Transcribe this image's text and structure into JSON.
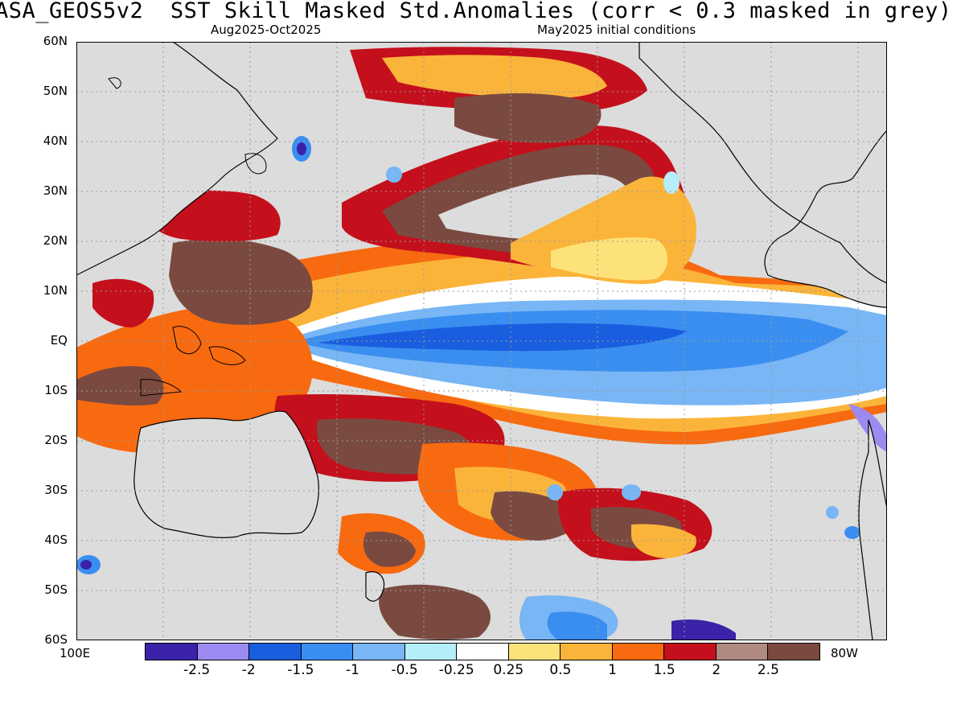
{
  "title": "ASA_GEOS5v2  SST Skill Masked Std.Anomalies (corr < 0.3 masked in grey)",
  "subtitle_left": "Aug2025-Oct2025",
  "subtitle_right": "May2025 initial conditions",
  "lat_labels": [
    "60N",
    "50N",
    "40N",
    "30N",
    "20N",
    "10N",
    "EQ",
    "10S",
    "20S",
    "30S",
    "40S",
    "50S",
    "60S"
  ],
  "lon_labels": {
    "left": "100E",
    "right": "80W"
  },
  "colorbar": {
    "colors": [
      "#3b22a8",
      "#9d8af0",
      "#1a5ee0",
      "#3a8ef0",
      "#78b6f5",
      "#b4eef8",
      "#ffffff",
      "#fde27a",
      "#fbb43a",
      "#f86a10",
      "#c4101c",
      "#b08a80",
      "#7a4a40"
    ],
    "labels": [
      "-2.5",
      "-2",
      "-1.5",
      "-1",
      "-0.5",
      "-0.25",
      "0.25",
      "0.5",
      "1",
      "1.5",
      "2",
      "2.5"
    ]
  },
  "colors": {
    "mask_grey": "#dcdcdc",
    "coast": "#000000"
  }
}
